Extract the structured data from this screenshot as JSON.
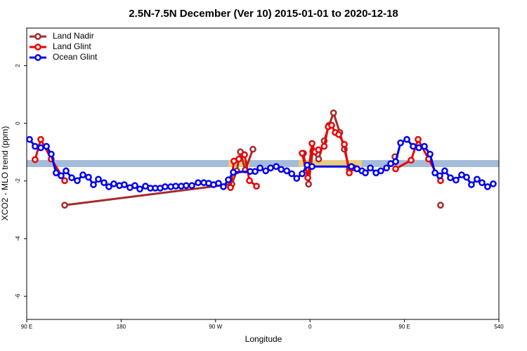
{
  "chart_data": {
    "type": "line",
    "title": "2.5N-7.5N December (Ver 10)   2015-01-01 to 2020-12-18",
    "xlabel": "Longitude",
    "ylabel": "XCO2 - MLO trend (ppm)",
    "xlim": [
      90,
      540
    ],
    "ylim": [
      -6.8,
      3.3
    ],
    "xticks": [
      {
        "value": 90,
        "label": "90 E"
      },
      180,
      {
        "value": 270,
        "label": "90 W"
      },
      {
        "value": 360,
        "label": "0"
      },
      {
        "value": 450,
        "label": "90 E"
      },
      540
    ],
    "yticks": [
      -6,
      -4,
      -2,
      0,
      2
    ],
    "legend": "top-left",
    "series": [
      {
        "name": "Land Nadir",
        "color": "#a52a2a",
        "x": [
          126.2,
          285.5,
          290.2,
          293.6,
          298.3,
          305.6,
          null,
          353.8,
          358.6,
          362.6,
          368.2,
          373.5,
          378.2,
          382.4,
          388.4,
          392.7,
          397.4,
          null,
          440.9,
          null,
          484.4
        ],
        "values": [
          -2.84,
          -2.11,
          -1.65,
          -0.99,
          -1.62,
          -0.9,
          null,
          -1.04,
          -2.11,
          -0.97,
          -1.24,
          -0.61,
          -0.07,
          0.36,
          -0.32,
          -0.9,
          -1.58,
          null,
          -1.16,
          null,
          -2.84
        ]
      },
      {
        "name": "Land Glint",
        "color": "#ee0000",
        "x": [
          98,
          103.4,
          113.4,
          126.2,
          null,
          284.2,
          287.5,
          292.2,
          297.6,
          302.3,
          309,
          null,
          352.5,
          357.9,
          361.9,
          364.6,
          368,
          373.5,
          377.3,
          380.6,
          384,
          387.3,
          392.7,
          397.4,
          402.1,
          null,
          441.6,
          456.3,
          463,
          473,
          484.4
        ],
        "values": [
          -1.26,
          -0.56,
          -1.24,
          -1.99,
          null,
          -2.23,
          -1.31,
          -1.24,
          -1.09,
          -1.99,
          -2.18,
          null,
          -1.04,
          -1.89,
          -0.7,
          -0.99,
          -0.92,
          -0.8,
          -0.12,
          -0.07,
          -0.32,
          -0.39,
          -0.73,
          -1.72,
          -1.55,
          null,
          -1.58,
          -1.28,
          -0.56,
          -1.24,
          -1.99
        ]
      },
      {
        "name": "Ocean Glint",
        "color": "#0000ee",
        "x": [
          92.7,
          98,
          103.4,
          108.8,
          113.4,
          118,
          122.8,
          127.5,
          132.9,
          138.2,
          143.6,
          148.9,
          153.6,
          158.3,
          163.7,
          168.3,
          173,
          178.4,
          183,
          188.4,
          193.1,
          197.8,
          203.2,
          207.9,
          212.5,
          217.2,
          221.9,
          227.3,
          232,
          237.3,
          242,
          247.4,
          253.4,
          258.8,
          263.4,
          268.1,
          272.8,
          277.5,
          282.2,
          286.9,
          303,
          307.7,
          312.4,
          317.8,
          322.4,
          327.8,
          332.5,
          337.9,
          342.6,
          347.3,
          352.5,
          357.2,
          361.9,
          399.4,
          404.8,
          409.5,
          412.8,
          417.5,
          422.9,
          427.5,
          432.9,
          436.9,
          441.6,
          446.3,
          452.3,
          458.3,
          463.7,
          469,
          474.4,
          479.1,
          483.7,
          488.4,
          493.8,
          499.1,
          504.5,
          509.2,
          513.8,
          519.2,
          523.9,
          529.2,
          534.6
        ],
        "values": [
          -0.56,
          -0.8,
          -0.85,
          -0.8,
          -1.07,
          -1.72,
          -1.82,
          -1.65,
          -1.89,
          -1.99,
          -1.79,
          -1.87,
          -2.13,
          -1.94,
          -2.06,
          -2.2,
          -2.1,
          -2.16,
          -2.13,
          -2.23,
          -2.16,
          -2.28,
          -2.18,
          -2.25,
          -2.25,
          -2.25,
          -2.2,
          -2.2,
          -2.18,
          -2.18,
          -2.16,
          -2.16,
          -2.06,
          -2.06,
          -2.08,
          -2.13,
          -2.08,
          -2.2,
          -1.96,
          -1.7,
          -1.67,
          -1.67,
          -1.55,
          -1.65,
          -1.55,
          -1.5,
          -1.6,
          -1.65,
          -1.75,
          -1.91,
          -1.75,
          -1.45,
          -1.5,
          -1.5,
          -1.58,
          -1.65,
          -1.72,
          -1.55,
          -1.72,
          -1.65,
          -1.55,
          -1.4,
          -1.33,
          -0.68,
          -0.56,
          -0.8,
          -0.85,
          -0.8,
          -1.07,
          -1.72,
          -1.82,
          -1.65,
          -1.89,
          -1.97,
          -1.79,
          -1.87,
          -2.13,
          -1.94,
          -2.06,
          -2.2,
          -2.1
        ]
      }
    ]
  }
}
